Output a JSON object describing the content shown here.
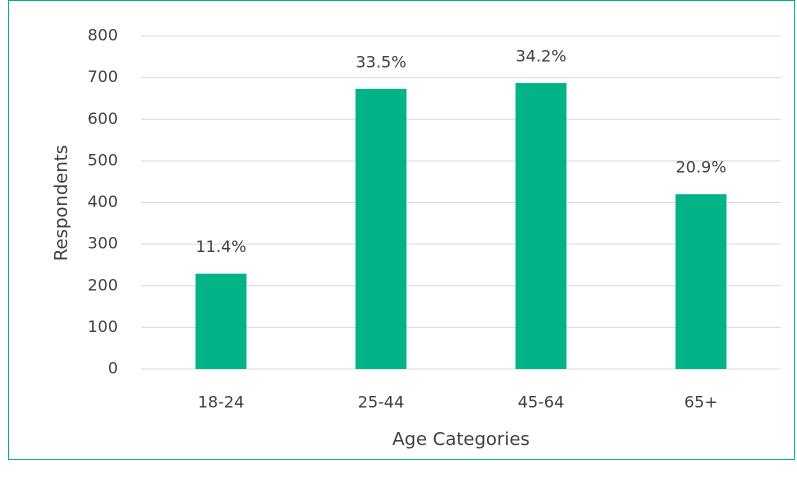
{
  "chart_data": {
    "type": "bar",
    "x_label": "Age Categories",
    "y_label": "Respondents",
    "categories": [
      "18-24",
      "25-44",
      "45-64",
      "65+"
    ],
    "values": [
      229,
      673,
      687,
      420
    ],
    "data_labels": [
      "11.4%",
      "33.5%",
      "34.2%",
      "20.9%"
    ],
    "color": "#02b388",
    "ylim": [
      0,
      800
    ],
    "yticks": [
      0,
      100,
      200,
      300,
      400,
      500,
      600,
      700,
      800
    ],
    "grid": true
  }
}
